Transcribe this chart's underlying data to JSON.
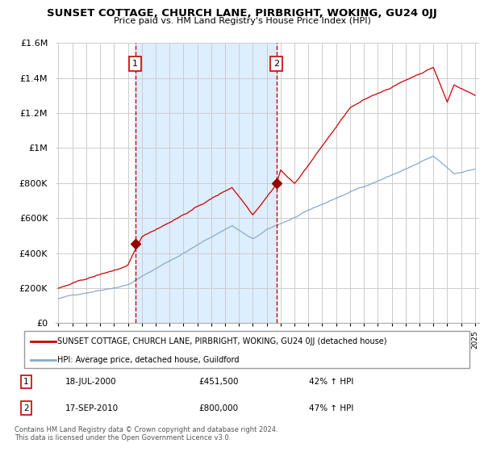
{
  "title": "SUNSET COTTAGE, CHURCH LANE, PIRBRIGHT, WOKING, GU24 0JJ",
  "subtitle": "Price paid vs. HM Land Registry's House Price Index (HPI)",
  "ylim": [
    0,
    1600000
  ],
  "yticks": [
    0,
    200000,
    400000,
    600000,
    800000,
    1000000,
    1200000,
    1400000,
    1600000
  ],
  "ytick_labels": [
    "£0",
    "£200K",
    "£400K",
    "£600K",
    "£800K",
    "£1M",
    "£1.2M",
    "£1.4M",
    "£1.6M"
  ],
  "sale1_date": 2000.54,
  "sale1_price": 451500,
  "sale1_label": "1",
  "sale2_date": 2010.71,
  "sale2_price": 800000,
  "sale2_label": "2",
  "line1_color": "#cc0000",
  "line2_color": "#88aacc",
  "shade_color": "#ddeeff",
  "marker_color": "#990000",
  "vline_color": "#cc0000",
  "grid_color": "#cccccc",
  "bg_color": "#ffffff",
  "legend1_label": "SUNSET COTTAGE, CHURCH LANE, PIRBRIGHT, WOKING, GU24 0JJ (detached house)",
  "legend2_label": "HPI: Average price, detached house, Guildford",
  "note1_num": "1",
  "note1_date": "18-JUL-2000",
  "note1_price": "£451,500",
  "note1_hpi": "42% ↑ HPI",
  "note2_num": "2",
  "note2_date": "17-SEP-2010",
  "note2_price": "£800,000",
  "note2_hpi": "47% ↑ HPI",
  "footer": "Contains HM Land Registry data © Crown copyright and database right 2024.\nThis data is licensed under the Open Government Licence v3.0."
}
